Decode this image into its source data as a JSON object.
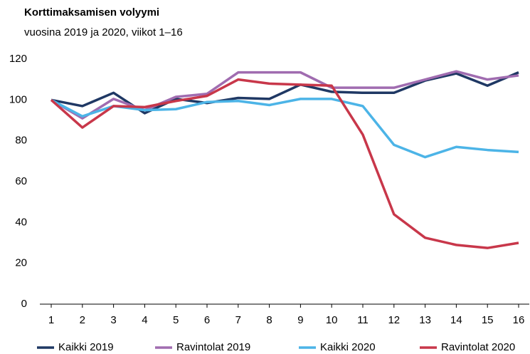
{
  "chart_data": {
    "type": "line",
    "title": "Korttimaksamisen volyymi",
    "subtitle": "vuosina 2019 ja 2020, viikot 1–16",
    "categories": [
      "1",
      "2",
      "3",
      "4",
      "5",
      "6",
      "7",
      "8",
      "9",
      "10",
      "11",
      "12",
      "13",
      "14",
      "15",
      "16"
    ],
    "series": [
      {
        "name": "Kaikki 2019",
        "color": "#1f3864",
        "values": [
          100,
          97,
          103.5,
          93.5,
          100.5,
          98.5,
          101,
          100.5,
          107.5,
          104,
          103.5,
          103.5,
          109.5,
          113,
          107,
          113.5
        ]
      },
      {
        "name": "Ravintolat 2019",
        "color": "#a06cb0",
        "values": [
          100,
          91,
          100.5,
          95,
          101.5,
          103,
          113.5,
          113.5,
          113.5,
          106,
          106,
          106,
          110,
          114,
          110,
          112
        ]
      },
      {
        "name": "Kaikki 2020",
        "color": "#4cb4e7",
        "values": [
          100,
          92,
          97,
          95,
          95.5,
          99,
          99.5,
          97.5,
          100.5,
          100.5,
          97,
          78,
          72,
          77,
          75.5,
          74.5
        ]
      },
      {
        "name": "Ravintolat 2020",
        "color": "#c8374a",
        "values": [
          100,
          86.5,
          97,
          96.5,
          99.5,
          102,
          110,
          108,
          107.5,
          107,
          83,
          44,
          32.5,
          29,
          27.5,
          30
        ]
      }
    ],
    "ylim": [
      0,
      120
    ],
    "yticks": [
      0,
      20,
      40,
      60,
      80,
      100,
      120
    ],
    "grid": false
  }
}
